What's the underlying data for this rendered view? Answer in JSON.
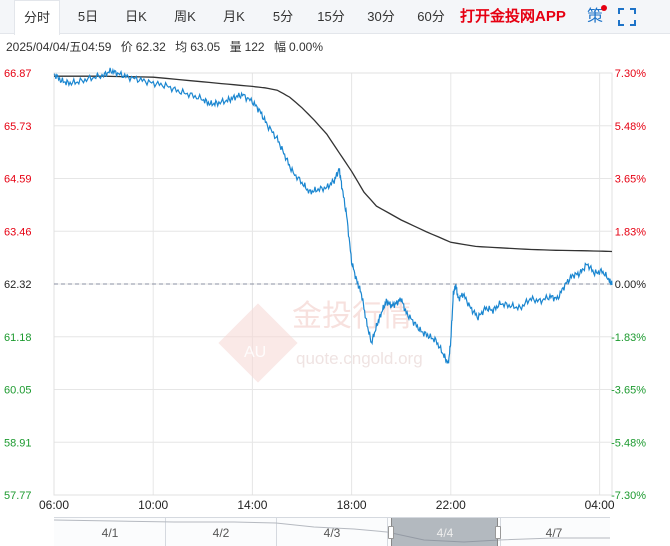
{
  "tabs": [
    {
      "label": "分时",
      "active": true
    },
    {
      "label": "5日"
    },
    {
      "label": "日K"
    },
    {
      "label": "周K"
    },
    {
      "label": "月K"
    },
    {
      "label": "5分"
    },
    {
      "label": "15分"
    },
    {
      "label": "30分"
    },
    {
      "label": "60分"
    }
  ],
  "promo_label": "打开金投网APP",
  "strategy_label": "策",
  "info": {
    "datetime": "2025/04/04/五04:59",
    "price_label": "价",
    "price": "62.32",
    "avg_label": "均",
    "avg": "63.05",
    "volume_label": "量",
    "volume": "122",
    "change_label": "幅",
    "change": "0.00%"
  },
  "watermark": {
    "brand": "金投行情",
    "site": "quote.cngold.org",
    "logo": "AU"
  },
  "colors": {
    "price_line": "#1a86d0",
    "avg_line": "#333333",
    "up": "#e60012",
    "down": "#1c9a2f",
    "grid": "#e6e6e6",
    "baseline": "#8a8fa0"
  },
  "navigator": {
    "days": [
      "4/1",
      "4/2",
      "4/3",
      "4/4",
      "4/7"
    ]
  },
  "chart_data": {
    "type": "line",
    "y_left_ticks": [
      "66.87",
      "65.73",
      "64.59",
      "63.46",
      "62.32",
      "61.18",
      "60.05",
      "58.91",
      "57.77"
    ],
    "y_right_ticks": [
      "7.30%",
      "5.48%",
      "3.65%",
      "1.83%",
      "0.00%",
      "-1.83%",
      "-3.65%",
      "-5.48%",
      "-7.30%"
    ],
    "ylim": [
      57.77,
      66.87
    ],
    "baseline": 62.32,
    "x_ticks": [
      "06:00",
      "10:00",
      "14:00",
      "18:00",
      "22:00",
      "04:00"
    ],
    "x_start": "06:00",
    "x_end": "04:30",
    "x_unit": "hours after 06:00",
    "series": [
      {
        "role": "price",
        "points": [
          [
            0.0,
            66.85
          ],
          [
            0.3,
            66.7
          ],
          [
            0.6,
            66.65
          ],
          [
            1.0,
            66.68
          ],
          [
            1.5,
            66.76
          ],
          [
            2.0,
            66.82
          ],
          [
            2.3,
            66.92
          ],
          [
            2.6,
            66.85
          ],
          [
            3.0,
            66.78
          ],
          [
            3.5,
            66.72
          ],
          [
            4.0,
            66.65
          ],
          [
            4.5,
            66.6
          ],
          [
            5.0,
            66.48
          ],
          [
            5.5,
            66.4
          ],
          [
            6.0,
            66.3
          ],
          [
            6.3,
            66.2
          ],
          [
            6.6,
            66.22
          ],
          [
            7.0,
            66.28
          ],
          [
            7.3,
            66.35
          ],
          [
            7.6,
            66.4
          ],
          [
            8.0,
            66.25
          ],
          [
            8.3,
            66.05
          ],
          [
            8.6,
            65.75
          ],
          [
            9.0,
            65.45
          ],
          [
            9.3,
            65.1
          ],
          [
            9.6,
            64.75
          ],
          [
            10.0,
            64.5
          ],
          [
            10.3,
            64.3
          ],
          [
            10.6,
            64.35
          ],
          [
            11.0,
            64.4
          ],
          [
            11.3,
            64.55
          ],
          [
            11.5,
            64.8
          ],
          [
            11.6,
            64.45
          ],
          [
            11.8,
            63.8
          ],
          [
            12.0,
            62.8
          ],
          [
            12.2,
            62.4
          ],
          [
            12.4,
            62.1
          ],
          [
            12.6,
            61.5
          ],
          [
            12.8,
            61.05
          ],
          [
            13.0,
            61.4
          ],
          [
            13.2,
            61.7
          ],
          [
            13.4,
            61.95
          ],
          [
            13.6,
            61.85
          ],
          [
            13.8,
            61.9
          ],
          [
            14.0,
            62.0
          ],
          [
            14.2,
            61.7
          ],
          [
            14.5,
            61.5
          ],
          [
            14.8,
            61.3
          ],
          [
            15.1,
            61.2
          ],
          [
            15.4,
            61.1
          ],
          [
            15.7,
            60.8
          ],
          [
            15.9,
            60.6
          ],
          [
            16.0,
            61.1
          ],
          [
            16.1,
            62.1
          ],
          [
            16.2,
            62.3
          ],
          [
            16.3,
            62.0
          ],
          [
            16.5,
            62.1
          ],
          [
            16.8,
            61.8
          ],
          [
            17.1,
            61.6
          ],
          [
            17.4,
            61.8
          ],
          [
            17.7,
            61.75
          ],
          [
            18.0,
            61.9
          ],
          [
            18.4,
            61.85
          ],
          [
            18.8,
            61.8
          ],
          [
            19.2,
            62.0
          ],
          [
            19.6,
            61.95
          ],
          [
            20.0,
            62.05
          ],
          [
            20.3,
            62.0
          ],
          [
            20.6,
            62.3
          ],
          [
            20.9,
            62.5
          ],
          [
            21.2,
            62.55
          ],
          [
            21.5,
            62.75
          ],
          [
            21.8,
            62.55
          ],
          [
            22.1,
            62.6
          ],
          [
            22.4,
            62.4
          ],
          [
            22.5,
            62.3
          ]
        ]
      },
      {
        "role": "average",
        "points": [
          [
            0.0,
            66.8
          ],
          [
            2.0,
            66.8
          ],
          [
            4.0,
            66.78
          ],
          [
            6.0,
            66.68
          ],
          [
            7.0,
            66.63
          ],
          [
            8.0,
            66.58
          ],
          [
            8.5,
            66.55
          ],
          [
            9.0,
            66.5
          ],
          [
            9.5,
            66.35
          ],
          [
            10.0,
            66.12
          ],
          [
            10.5,
            65.85
          ],
          [
            11.0,
            65.55
          ],
          [
            11.5,
            65.15
          ],
          [
            12.0,
            64.75
          ],
          [
            12.5,
            64.3
          ],
          [
            13.0,
            64.0
          ],
          [
            14.0,
            63.7
          ],
          [
            15.0,
            63.45
          ],
          [
            16.0,
            63.22
          ],
          [
            17.0,
            63.13
          ],
          [
            18.0,
            63.1
          ],
          [
            19.0,
            63.07
          ],
          [
            20.0,
            63.05
          ],
          [
            21.0,
            63.04
          ],
          [
            22.0,
            63.03
          ],
          [
            22.5,
            63.02
          ]
        ]
      }
    ],
    "grid": true
  }
}
